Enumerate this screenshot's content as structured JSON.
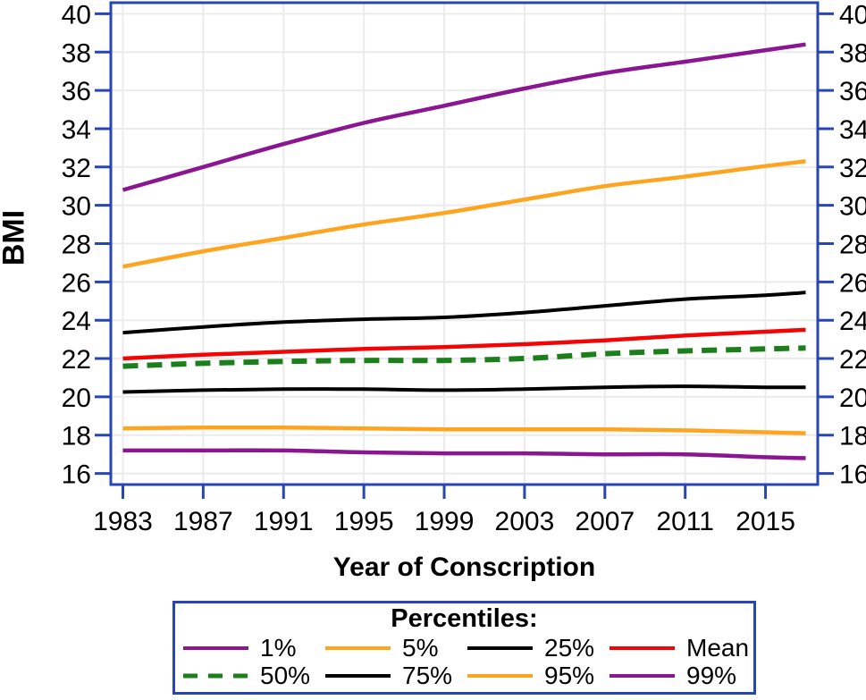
{
  "chart_data": {
    "type": "line",
    "title": "",
    "xlabel": "Year of Conscription",
    "ylabel": "BMI",
    "xlim": [
      1982.4,
      2017.6
    ],
    "ylim": [
      15.42,
      40.58
    ],
    "x_ticks": [
      1983,
      1987,
      1991,
      1995,
      1999,
      2003,
      2007,
      2011,
      2015
    ],
    "y_ticks": [
      16,
      18,
      20,
      22,
      24,
      26,
      28,
      30,
      32,
      34,
      36,
      38,
      40
    ],
    "grid": true,
    "legend_position": "bottom",
    "x": [
      1983,
      1987,
      1991,
      1995,
      1999,
      2003,
      2007,
      2011,
      2015,
      2017
    ],
    "series": [
      {
        "name": "99%",
        "color": "#8A1691",
        "dash": false,
        "width": 4.5,
        "values": [
          30.8,
          32.0,
          33.2,
          34.3,
          35.2,
          36.1,
          36.9,
          37.5,
          38.1,
          38.4
        ]
      },
      {
        "name": "95%",
        "color": "#FFA41E",
        "dash": false,
        "width": 4.5,
        "values": [
          26.8,
          27.6,
          28.3,
          29.0,
          29.6,
          30.3,
          31.0,
          31.5,
          32.05,
          32.3
        ]
      },
      {
        "name": "75%",
        "color": "#000000",
        "dash": false,
        "width": 4.0,
        "values": [
          23.35,
          23.65,
          23.9,
          24.05,
          24.15,
          24.4,
          24.75,
          25.1,
          25.3,
          25.45
        ]
      },
      {
        "name": "Mean",
        "color": "#F40505",
        "dash": false,
        "width": 4.5,
        "values": [
          22.0,
          22.2,
          22.35,
          22.5,
          22.6,
          22.75,
          22.95,
          23.2,
          23.4,
          23.5
        ]
      },
      {
        "name": "25%",
        "color": "#000000",
        "dash": false,
        "width": 4.0,
        "values": [
          20.25,
          20.35,
          20.4,
          20.4,
          20.35,
          20.4,
          20.5,
          20.55,
          20.5,
          20.5
        ]
      },
      {
        "name": "5%",
        "color": "#FFA41E",
        "dash": false,
        "width": 4.5,
        "values": [
          18.35,
          18.4,
          18.4,
          18.35,
          18.3,
          18.3,
          18.3,
          18.25,
          18.15,
          18.1
        ]
      },
      {
        "name": "1%",
        "color": "#8A1691",
        "dash": false,
        "width": 4.5,
        "values": [
          17.2,
          17.2,
          17.2,
          17.1,
          17.05,
          17.05,
          17.0,
          17.0,
          16.85,
          16.8
        ]
      },
      {
        "name": "50%",
        "color": "#1C7F1C",
        "dash": true,
        "width": 6.0,
        "values": [
          21.6,
          21.75,
          21.85,
          21.9,
          21.9,
          22.0,
          22.25,
          22.4,
          22.5,
          22.55
        ]
      }
    ]
  },
  "legend": {
    "title": "Percentiles:",
    "rows": [
      [
        "1%",
        "5%",
        "25%",
        "Mean"
      ],
      [
        "50%",
        "75%",
        "95%",
        "99%"
      ]
    ]
  },
  "colors": {
    "frame": "#2845B4",
    "grid": "#EBEBEB",
    "text": "#000000"
  }
}
